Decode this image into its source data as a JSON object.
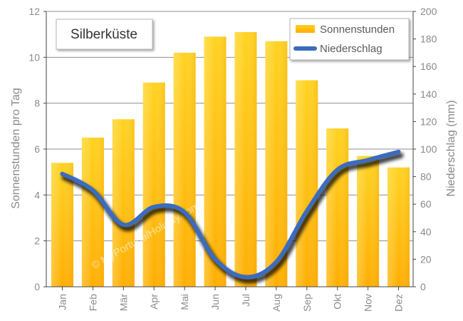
{
  "chart_data": {
    "type": "bar",
    "title": "Silberküste",
    "categories": [
      "Jan",
      "Feb",
      "Mär",
      "Apr",
      "Mai",
      "Jun",
      "Jul",
      "Aug",
      "Sep",
      "Okt",
      "Nov",
      "Dez"
    ],
    "series": [
      {
        "name": "Sonnenstunden",
        "type": "bar",
        "axis": "left",
        "values": [
          5.4,
          6.5,
          7.3,
          8.9,
          10.2,
          10.9,
          11.1,
          10.7,
          9.0,
          6.9,
          5.7,
          5.2
        ]
      },
      {
        "name": "Niederschlag",
        "type": "line",
        "axis": "right",
        "values": [
          82,
          70,
          45,
          58,
          54,
          20,
          7,
          18,
          55,
          85,
          92,
          98
        ]
      }
    ],
    "ylabel": "Sonnenstunden pro Tag",
    "ylim": [
      0,
      12
    ],
    "yticks": [
      0,
      2,
      4,
      6,
      8,
      10,
      12
    ],
    "y2label": "Niederschlag (mm)",
    "y2lim": [
      0,
      200
    ],
    "y2ticks": [
      0,
      20,
      40,
      60,
      80,
      100,
      120,
      140,
      160,
      180,
      200
    ],
    "grid": true,
    "legend_position": "top-right",
    "watermark": "© MyPortugalHoliday.com",
    "colors": {
      "bar_top": "#ffd21f",
      "bar_bottom": "#ffad00",
      "line": "#3a6cbf",
      "grid": "#8f8f8f",
      "plot_bg": "#ffffff"
    }
  }
}
